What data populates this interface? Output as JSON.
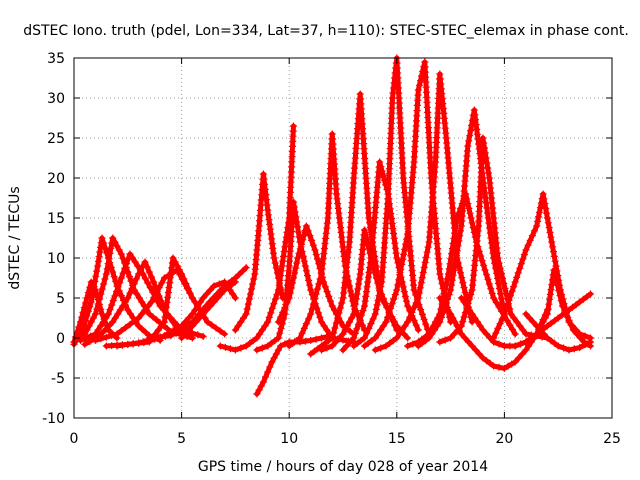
{
  "chart_data": {
    "type": "scatter",
    "title": "dSTEC Iono. truth (pdel, Lon=334, Lat=37, h=110): STEC-STEC_elemax in phase cont.",
    "xlabel": "GPS time / hours of day 028 of year 2014",
    "ylabel": "dSTEC  / TECUs",
    "xlim": [
      0,
      25
    ],
    "ylim": [
      -10,
      35
    ],
    "xticks": [
      0,
      5,
      10,
      15,
      20,
      25
    ],
    "yticks": [
      -10,
      -5,
      0,
      5,
      10,
      15,
      20,
      25,
      30,
      35
    ],
    "grid": true,
    "legend": "none",
    "color": "#ff0000",
    "marker": "plus",
    "series": [
      {
        "x": [
          0.0,
          0.3,
          0.6,
          0.8,
          1.0,
          1.3,
          1.6,
          2.0
        ],
        "y": [
          -0.5,
          2.0,
          5.0,
          7.0,
          6.0,
          3.0,
          1.0,
          0.0
        ]
      },
      {
        "x": [
          0.0,
          0.4,
          0.8,
          1.1,
          1.3,
          1.6,
          2.0,
          2.5,
          3.0,
          3.5,
          4.0
        ],
        "y": [
          -0.8,
          1.0,
          4.5,
          9.0,
          12.5,
          10.0,
          6.5,
          3.5,
          1.5,
          0.3,
          -0.3
        ]
      },
      {
        "x": [
          0.0,
          0.5,
          1.0,
          1.5,
          1.8,
          2.2,
          2.8,
          3.5,
          4.5,
          5.5
        ],
        "y": [
          -0.5,
          0.5,
          3.0,
          8.0,
          12.5,
          10.5,
          6.0,
          3.0,
          0.8,
          0.0
        ]
      },
      {
        "x": [
          0.3,
          1.0,
          1.6,
          2.2,
          2.6,
          3.2,
          4.0,
          5.0,
          6.0
        ],
        "y": [
          -0.3,
          0.5,
          3.0,
          7.5,
          10.5,
          8.0,
          4.0,
          1.0,
          0.2
        ]
      },
      {
        "x": [
          0.5,
          1.2,
          1.8,
          2.5,
          3.0,
          3.3,
          3.7,
          4.2,
          5.0
        ],
        "y": [
          -0.8,
          0.3,
          2.0,
          5.0,
          8.0,
          9.5,
          7.0,
          3.5,
          0.5
        ]
      },
      {
        "x": [
          1.0,
          2.0,
          3.0,
          3.6,
          4.2,
          4.8,
          5.5
        ],
        "y": [
          -0.3,
          0.5,
          2.5,
          4.5,
          7.5,
          8.5,
          5.0
        ]
      },
      {
        "x": [
          1.5,
          2.5,
          3.5,
          4.2,
          4.6,
          5.0,
          5.5,
          6.2,
          7.0
        ],
        "y": [
          -1.0,
          -0.8,
          -0.5,
          2.0,
          10.0,
          8.0,
          5.0,
          2.0,
          0.5
        ]
      },
      {
        "x": [
          2.0,
          3.0,
          4.0,
          5.0,
          5.5,
          6.0,
          6.5,
          7.0,
          7.5
        ],
        "y": [
          -1.0,
          -0.6,
          0.0,
          1.5,
          3.0,
          5.0,
          6.5,
          7.0,
          5.0
        ]
      },
      {
        "x": [
          3.5,
          4.5,
          5.5,
          6.3,
          7.0,
          7.5,
          8.0
        ],
        "y": [
          0.0,
          0.3,
          2.0,
          4.5,
          6.5,
          7.5,
          8.8
        ]
      },
      {
        "x": [
          5.0,
          5.5,
          6.0,
          6.5,
          7.0,
          7.5
        ],
        "y": [
          0.0,
          1.5,
          3.0,
          4.5,
          6.0,
          7.0
        ]
      },
      {
        "x": [
          6.8,
          7.5,
          8.0,
          8.5,
          9.0,
          9.5,
          10.0,
          10.2
        ],
        "y": [
          -1.0,
          -1.5,
          -1.0,
          0.0,
          2.0,
          6.0,
          15.0,
          26.5
        ]
      },
      {
        "x": [
          8.5,
          8.8,
          9.2,
          9.6,
          10.0,
          10.5,
          11.0,
          11.5,
          12.0
        ],
        "y": [
          -7.0,
          -5.5,
          -3.0,
          -1.0,
          -0.5,
          -0.5,
          -0.3,
          0.0,
          0.3
        ]
      },
      {
        "x": [
          7.5,
          8.0,
          8.4,
          8.6,
          8.8,
          9.0,
          9.3,
          9.7
        ],
        "y": [
          1.0,
          3.0,
          8.0,
          14.0,
          20.5,
          16.0,
          10.0,
          5.0
        ]
      },
      {
        "x": [
          8.5,
          9.0,
          9.5,
          9.8,
          10.0,
          10.2,
          10.5,
          11.0,
          11.5,
          12.0,
          13.0
        ],
        "y": [
          -1.5,
          -1.0,
          0.0,
          3.0,
          9.0,
          17.0,
          12.0,
          6.0,
          2.0,
          0.0,
          -0.5
        ]
      },
      {
        "x": [
          9.5,
          10.0,
          10.4,
          10.8,
          11.2,
          11.6,
          12.0,
          12.5,
          13.0
        ],
        "y": [
          2.0,
          5.0,
          10.0,
          14.0,
          11.0,
          7.0,
          4.0,
          1.5,
          0.5
        ]
      },
      {
        "x": [
          10.0,
          10.5,
          11.0,
          11.5,
          11.8,
          12.0,
          12.2,
          12.6,
          13.0,
          13.5
        ],
        "y": [
          -1.0,
          0.0,
          3.0,
          8.0,
          15.0,
          25.5,
          18.0,
          9.0,
          4.0,
          1.0
        ]
      },
      {
        "x": [
          11.0,
          11.5,
          12.0,
          12.5,
          12.8,
          13.0,
          13.3,
          13.7,
          14.2,
          15.0
        ],
        "y": [
          -2.0,
          -1.0,
          0.0,
          5.0,
          12.0,
          20.0,
          30.5,
          15.0,
          6.0,
          1.0
        ]
      },
      {
        "x": [
          11.5,
          12.0,
          12.5,
          13.0,
          13.3,
          13.5,
          13.8,
          14.3,
          15.0,
          15.5
        ],
        "y": [
          -1.5,
          -1.0,
          0.5,
          3.0,
          8.0,
          13.5,
          10.0,
          5.0,
          1.5,
          0.0
        ]
      },
      {
        "x": [
          12.5,
          13.0,
          13.5,
          13.8,
          14.2,
          14.6,
          15.0,
          15.5,
          16.0
        ],
        "y": [
          -1.5,
          0.0,
          4.0,
          10.0,
          22.0,
          18.0,
          10.0,
          4.0,
          1.0
        ]
      },
      {
        "x": [
          13.0,
          13.5,
          14.0,
          14.3,
          14.6,
          14.8,
          15.0,
          15.3,
          15.8,
          16.5
        ],
        "y": [
          -1.0,
          0.0,
          3.0,
          7.0,
          18.0,
          30.0,
          35.0,
          20.0,
          6.0,
          0.5
        ]
      },
      {
        "x": [
          13.5,
          14.0,
          14.5,
          15.0,
          15.5,
          15.8,
          16.0,
          16.3,
          16.6,
          17.0,
          17.5
        ],
        "y": [
          -1.0,
          0.0,
          2.0,
          6.0,
          13.0,
          22.0,
          31.0,
          34.5,
          20.0,
          8.0,
          2.0
        ]
      },
      {
        "x": [
          14.0,
          14.5,
          15.0,
          15.5,
          16.0,
          16.5,
          16.8,
          17.0,
          17.3,
          17.8,
          18.5
        ],
        "y": [
          -1.5,
          -1.0,
          0.0,
          2.0,
          5.0,
          12.0,
          22.0,
          33.0,
          25.0,
          10.0,
          2.0
        ]
      },
      {
        "x": [
          15.5,
          16.0,
          16.5,
          17.0,
          17.4,
          17.8,
          18.2,
          18.7,
          19.5,
          20.5
        ],
        "y": [
          -1.0,
          -0.5,
          0.5,
          3.0,
          8.0,
          15.0,
          18.0,
          12.0,
          5.0,
          0.5
        ]
      },
      {
        "x": [
          16.0,
          16.5,
          17.0,
          17.5,
          18.0,
          18.3,
          18.6,
          19.0,
          19.5,
          20.0
        ],
        "y": [
          -1.0,
          0.0,
          2.0,
          6.0,
          14.0,
          24.0,
          28.5,
          20.0,
          10.0,
          3.0
        ]
      },
      {
        "x": [
          17.0,
          17.5,
          18.0,
          18.5,
          18.8,
          19.0,
          19.3,
          19.7,
          20.3,
          21.0,
          22.0
        ],
        "y": [
          -0.5,
          0.0,
          1.5,
          6.0,
          14.0,
          25.0,
          20.0,
          10.0,
          3.0,
          0.5,
          0.0
        ]
      },
      {
        "x": [
          17.0,
          17.5,
          18.0,
          18.5,
          19.0,
          19.5,
          20.0,
          20.5,
          21.0,
          21.5,
          22.0
        ],
        "y": [
          5.0,
          3.0,
          0.5,
          -1.0,
          -2.5,
          -3.5,
          -3.8,
          -3.0,
          -1.5,
          0.5,
          3.5
        ]
      },
      {
        "x": [
          18.0,
          18.5,
          19.0,
          19.5,
          20.0,
          20.5,
          21.0,
          21.5,
          22.0,
          22.5,
          23.0,
          23.5,
          24.0
        ],
        "y": [
          5.0,
          3.0,
          1.0,
          -0.5,
          -1.0,
          -1.0,
          -0.5,
          0.5,
          1.5,
          2.5,
          3.5,
          4.5,
          5.5
        ]
      },
      {
        "x": [
          19.5,
          20.0,
          20.5,
          21.0,
          21.5,
          21.8,
          22.2,
          22.6,
          23.0,
          23.5,
          24.0
        ],
        "y": [
          0.0,
          3.0,
          7.0,
          11.0,
          14.0,
          18.0,
          12.0,
          6.0,
          2.0,
          0.5,
          0.0
        ]
      },
      {
        "x": [
          20.5,
          21.0,
          21.5,
          22.0,
          22.3,
          22.7,
          23.2,
          23.7,
          24.0
        ],
        "y": [
          -1.0,
          -0.5,
          0.5,
          3.0,
          8.5,
          4.0,
          1.0,
          -0.5,
          -1.0
        ]
      },
      {
        "x": [
          21.0,
          21.5,
          22.0,
          22.5,
          23.0,
          23.5,
          24.0
        ],
        "y": [
          3.0,
          1.5,
          0.0,
          -1.0,
          -1.5,
          -1.2,
          -0.5
        ]
      }
    ]
  }
}
